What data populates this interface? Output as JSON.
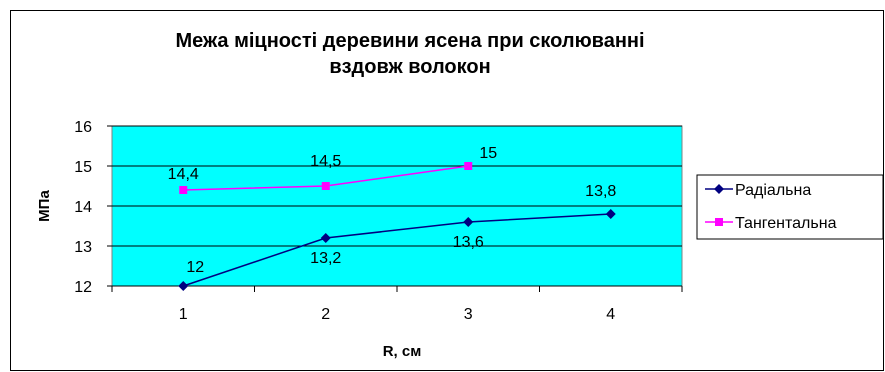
{
  "chart_data": {
    "type": "line",
    "title_lines": [
      "Межа міцності деревини ясена при сколюванні",
      "вздовж волокон"
    ],
    "xlabel": "R, см",
    "ylabel": "МПа",
    "x_categories": [
      "1",
      "2",
      "3",
      "4"
    ],
    "ylim": [
      12,
      16
    ],
    "yticks": [
      "12",
      "13",
      "14",
      "15",
      "16"
    ],
    "grid": "horizontal",
    "plot_bg": "#00ffff",
    "legend_position": "right",
    "series": [
      {
        "name": "Радіальна",
        "color": "#000080",
        "marker": "diamond",
        "x": [
          1,
          2,
          3,
          4
        ],
        "y": [
          12,
          13.2,
          13.6,
          13.8
        ],
        "labels": [
          "12",
          "13,2",
          "13,6",
          "13,8"
        ]
      },
      {
        "name": "Тангентальна",
        "color": "#ff00ff",
        "marker": "square",
        "x": [
          1,
          2,
          3
        ],
        "y": [
          14.4,
          14.5,
          15
        ],
        "labels": [
          "14,4",
          "14,5",
          "15"
        ]
      }
    ]
  }
}
